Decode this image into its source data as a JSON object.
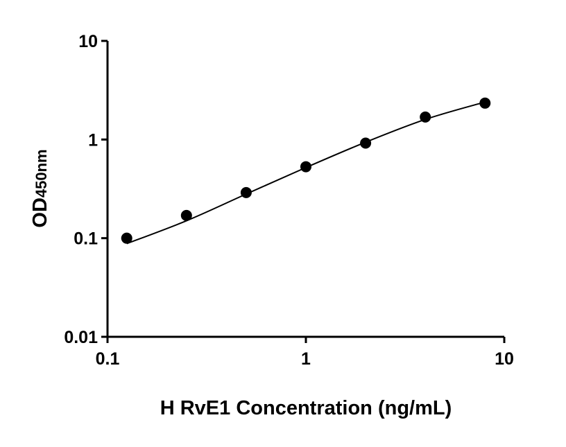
{
  "chart_data": {
    "type": "scatter",
    "title": "",
    "xlabel": "H RvE1 Concentration (ng/mL)",
    "ylabel": "OD",
    "ylabel_subscript": "450nm",
    "xscale": "log",
    "yscale": "log",
    "xlim": [
      0.1,
      10
    ],
    "ylim": [
      0.01,
      10
    ],
    "xticks": [
      "0.1",
      "1",
      "10"
    ],
    "yticks": [
      "0.01",
      "0.1",
      "1",
      "10"
    ],
    "grid": false,
    "points": {
      "x": [
        0.125,
        0.25,
        0.5,
        1,
        2,
        4,
        8
      ],
      "y": [
        0.1,
        0.17,
        0.29,
        0.53,
        0.92,
        1.69,
        2.34
      ]
    },
    "fit_curve": {
      "x": [
        0.125,
        0.25,
        0.5,
        1,
        2,
        4,
        8
      ],
      "y": [
        0.088,
        0.15,
        0.28,
        0.52,
        0.94,
        1.6,
        2.4
      ]
    },
    "colors": {
      "marker": "#000000",
      "line": "#000000"
    }
  }
}
